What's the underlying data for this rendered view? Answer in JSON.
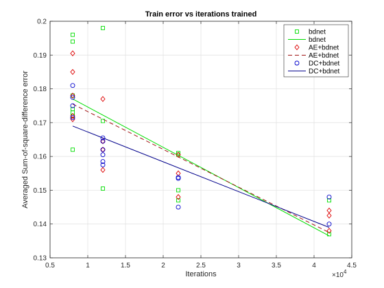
{
  "chart_data": {
    "type": "scatter",
    "title": "Train error vs iterations trained",
    "xlabel": "Iterations",
    "ylabel": "Averaged Sum-of-square-difference error",
    "x_exponent_label": "×10",
    "x_exponent_power": "4",
    "xlim": [
      5000,
      45000
    ],
    "ylim": [
      0.13,
      0.2
    ],
    "x_ticks": [
      5000,
      10000,
      15000,
      20000,
      25000,
      30000,
      35000,
      40000,
      45000
    ],
    "x_tick_labels": [
      "0.5",
      "1",
      "1.5",
      "2",
      "2.5",
      "3",
      "3.5",
      "4",
      "4.5"
    ],
    "y_ticks": [
      0.13,
      0.14,
      0.15,
      0.16,
      0.17,
      0.18,
      0.19,
      0.2
    ],
    "y_tick_labels": [
      "0.13",
      "0.14",
      "0.15",
      "0.16",
      "0.17",
      "0.18",
      "0.19",
      "0.2"
    ],
    "grid": true,
    "legend_position": "top-right",
    "series": [
      {
        "name": "bdnet",
        "kind": "markers",
        "marker": "square",
        "color": "#00dd00",
        "points": [
          [
            8000,
            0.196
          ],
          [
            8000,
            0.194
          ],
          [
            8000,
            0.178
          ],
          [
            8000,
            0.174
          ],
          [
            8000,
            0.173
          ],
          [
            8000,
            0.172
          ],
          [
            8000,
            0.162
          ],
          [
            12000,
            0.198
          ],
          [
            12000,
            0.1705
          ],
          [
            12000,
            0.1505
          ],
          [
            22000,
            0.161
          ],
          [
            22000,
            0.1605
          ],
          [
            22000,
            0.15
          ],
          [
            22000,
            0.147
          ],
          [
            42000,
            0.147
          ],
          [
            42000,
            0.137
          ]
        ]
      },
      {
        "name": "bdnet",
        "kind": "line",
        "dash": "solid",
        "color": "#00dd00",
        "points": [
          [
            8000,
            0.177
          ],
          [
            42000,
            0.1365
          ]
        ]
      },
      {
        "name": "AE+bdnet",
        "kind": "markers",
        "marker": "diamond",
        "color": "#dd0000",
        "points": [
          [
            8000,
            0.1905
          ],
          [
            8000,
            0.185
          ],
          [
            8000,
            0.178
          ],
          [
            8000,
            0.172
          ],
          [
            8000,
            0.171
          ],
          [
            12000,
            0.177
          ],
          [
            12000,
            0.1645
          ],
          [
            12000,
            0.162
          ],
          [
            12000,
            0.156
          ],
          [
            22000,
            0.1605
          ],
          [
            22000,
            0.155
          ],
          [
            22000,
            0.148
          ],
          [
            42000,
            0.144
          ],
          [
            42000,
            0.1425
          ],
          [
            42000,
            0.138
          ]
        ]
      },
      {
        "name": "AE+bdnet",
        "kind": "line",
        "dash": "dashed",
        "color": "#a01414",
        "points": [
          [
            8000,
            0.1755
          ],
          [
            42000,
            0.1375
          ]
        ]
      },
      {
        "name": "DC+bdnet",
        "kind": "markers",
        "marker": "circle",
        "color": "#0000cc",
        "points": [
          [
            8000,
            0.181
          ],
          [
            8000,
            0.1775
          ],
          [
            8000,
            0.175
          ],
          [
            8000,
            0.1715
          ],
          [
            12000,
            0.1655
          ],
          [
            12000,
            0.1645
          ],
          [
            12000,
            0.162
          ],
          [
            12000,
            0.1605
          ],
          [
            12000,
            0.1585
          ],
          [
            12000,
            0.1575
          ],
          [
            22000,
            0.1538
          ],
          [
            22000,
            0.1535
          ],
          [
            22000,
            0.145
          ],
          [
            42000,
            0.148
          ],
          [
            42000,
            0.14
          ]
        ]
      },
      {
        "name": "DC+bdnet",
        "kind": "line",
        "dash": "solid",
        "color": "#00008b",
        "points": [
          [
            8000,
            0.169
          ],
          [
            42000,
            0.139
          ]
        ]
      }
    ]
  }
}
